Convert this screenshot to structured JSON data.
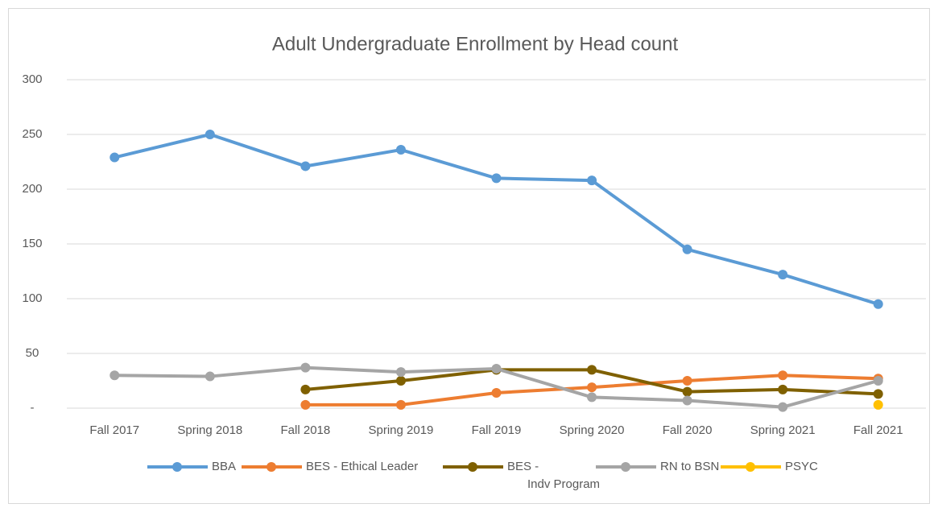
{
  "chart_data": {
    "type": "line",
    "title": "Adult Undergraduate Enrollment by Head count",
    "categories": [
      "Fall 2017",
      "Spring 2018",
      "Fall 2018",
      "Spring 2019",
      "Fall 2019",
      "Spring 2020",
      "Fall 2020",
      "Spring 2021",
      "Fall 2021"
    ],
    "series": [
      {
        "name": "BBA",
        "color": "#5b9bd5",
        "values": [
          229,
          250,
          221,
          236,
          210,
          208,
          145,
          122,
          95
        ]
      },
      {
        "name": "BES - Ethical Leader",
        "color": "#ed7d31",
        "values": [
          null,
          null,
          3,
          3,
          14,
          19,
          25,
          30,
          27
        ]
      },
      {
        "name": "BES -\nIndv Program",
        "color": "#7f6000",
        "values": [
          null,
          null,
          17,
          25,
          35,
          35,
          15,
          17,
          13
        ]
      },
      {
        "name": "RN to BSN",
        "color": "#a5a5a5",
        "values": [
          30,
          29,
          37,
          33,
          36,
          10,
          7,
          1,
          25
        ]
      },
      {
        "name": "PSYC",
        "color": "#ffc000",
        "values": [
          null,
          null,
          null,
          null,
          null,
          null,
          null,
          null,
          3
        ]
      }
    ],
    "ylim": [
      0,
      300
    ],
    "yticks": [
      {
        "value": 0,
        "label": "-"
      },
      50,
      100,
      150,
      200,
      250,
      300
    ],
    "grid": true,
    "legend": "bottom"
  }
}
